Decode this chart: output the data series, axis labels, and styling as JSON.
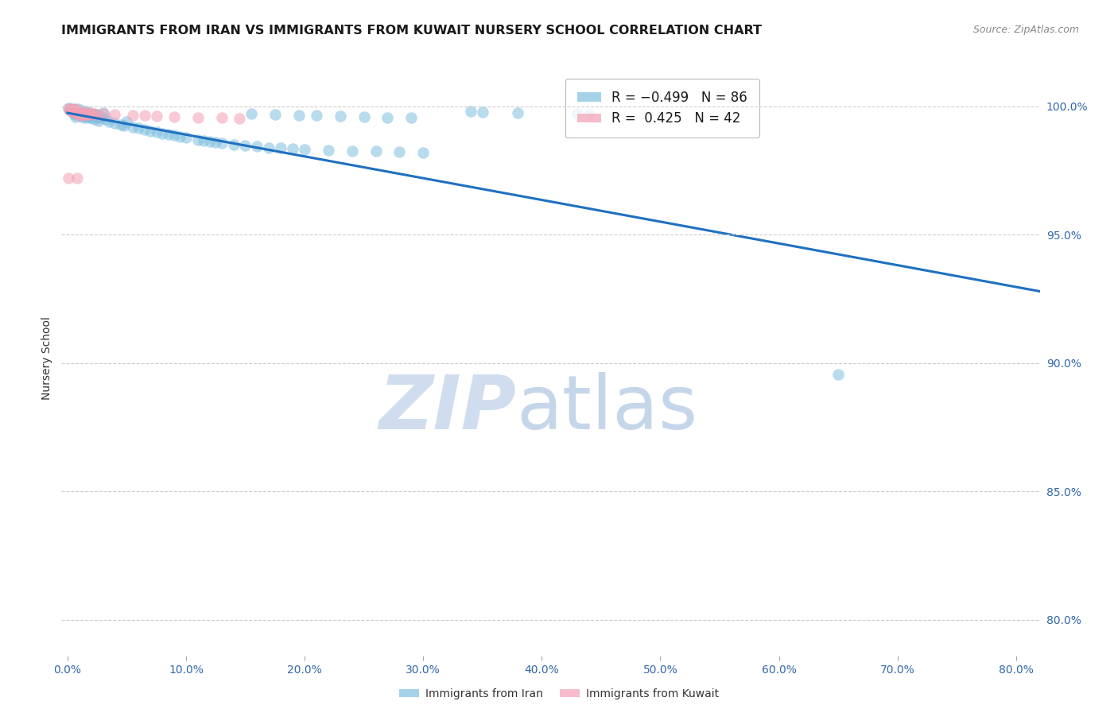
{
  "title": "IMMIGRANTS FROM IRAN VS IMMIGRANTS FROM KUWAIT NURSERY SCHOOL CORRELATION CHART",
  "source": "Source: ZipAtlas.com",
  "ylabel": "Nursery School",
  "xlabel_ticks": [
    "0.0%",
    "10.0%",
    "20.0%",
    "30.0%",
    "40.0%",
    "50.0%",
    "60.0%",
    "70.0%",
    "80.0%"
  ],
  "ytick_labels": [
    "80.0%",
    "85.0%",
    "90.0%",
    "95.0%",
    "100.0%"
  ],
  "ytick_values": [
    0.8,
    0.85,
    0.9,
    0.95,
    1.0
  ],
  "xtick_values": [
    0.0,
    0.1,
    0.2,
    0.3,
    0.4,
    0.5,
    0.6,
    0.7,
    0.8
  ],
  "xlim": [
    -0.005,
    0.82
  ],
  "ylim": [
    0.786,
    1.018
  ],
  "iran_color": "#7fbfdf",
  "kuwait_color": "#f4a0b5",
  "trendline_color": "#2070c0",
  "grid_color": "#cccccc",
  "background_color": "#ffffff",
  "title_fontsize": 11.5,
  "axis_label_fontsize": 10,
  "tick_fontsize": 10,
  "legend_fontsize": 12,
  "trendline_x0": 0.0,
  "trendline_x1": 0.82,
  "trendline_y0": 0.9975,
  "trendline_y1": 0.928,
  "watermark_zip_color": "#c8d8ec",
  "watermark_atlas_color": "#a8c0e0"
}
